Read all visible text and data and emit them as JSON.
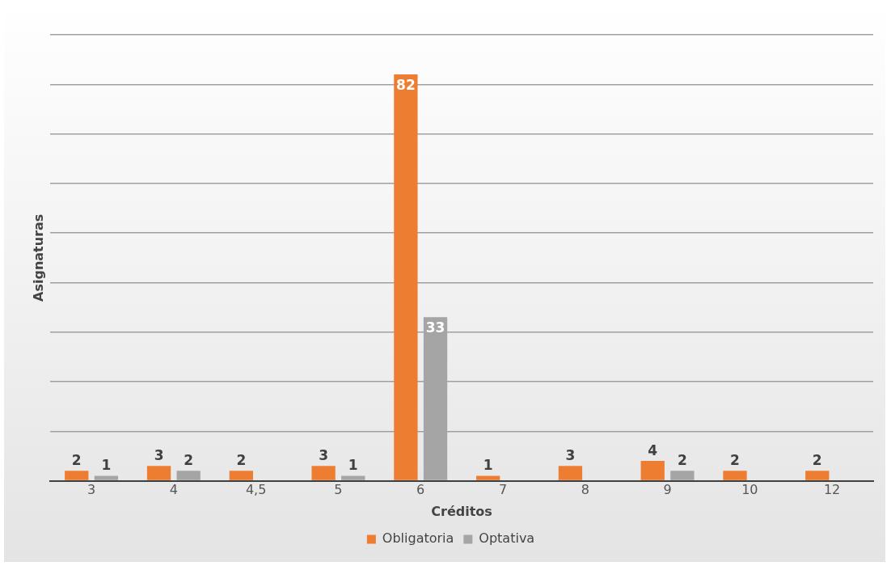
{
  "chart_data": {
    "type": "bar",
    "xlabel": "Créditos",
    "ylabel": "Asignaturas",
    "categories": [
      "3",
      "4",
      "4,5",
      "5",
      "6",
      "7",
      "8",
      "9",
      "10",
      "12"
    ],
    "series": [
      {
        "name": "Obligatoria",
        "color": "#ed7d31",
        "values": [
          2,
          3,
          2,
          3,
          82,
          1,
          3,
          4,
          2,
          2
        ]
      },
      {
        "name": "Optativa",
        "color": "#a5a5a5",
        "values": [
          1,
          2,
          null,
          1,
          33,
          null,
          null,
          2,
          null,
          null
        ]
      }
    ],
    "ylim": [
      0,
      90
    ],
    "yticks": [
      {
        "value": 0,
        "label": null
      },
      {
        "value": 10,
        "label": null
      },
      {
        "value": 20,
        "label": null
      },
      {
        "value": 30,
        "label": null
      },
      {
        "value": 40,
        "label": null
      },
      {
        "value": 50,
        "label": null
      },
      {
        "value": 60,
        "label": null
      },
      {
        "value": 70,
        "label": null
      },
      {
        "value": 80,
        "label": null
      },
      {
        "value": 90,
        "label": null
      }
    ],
    "tick_labels": "x",
    "grid": "y",
    "legend": "bottom",
    "data_labels": true
  }
}
